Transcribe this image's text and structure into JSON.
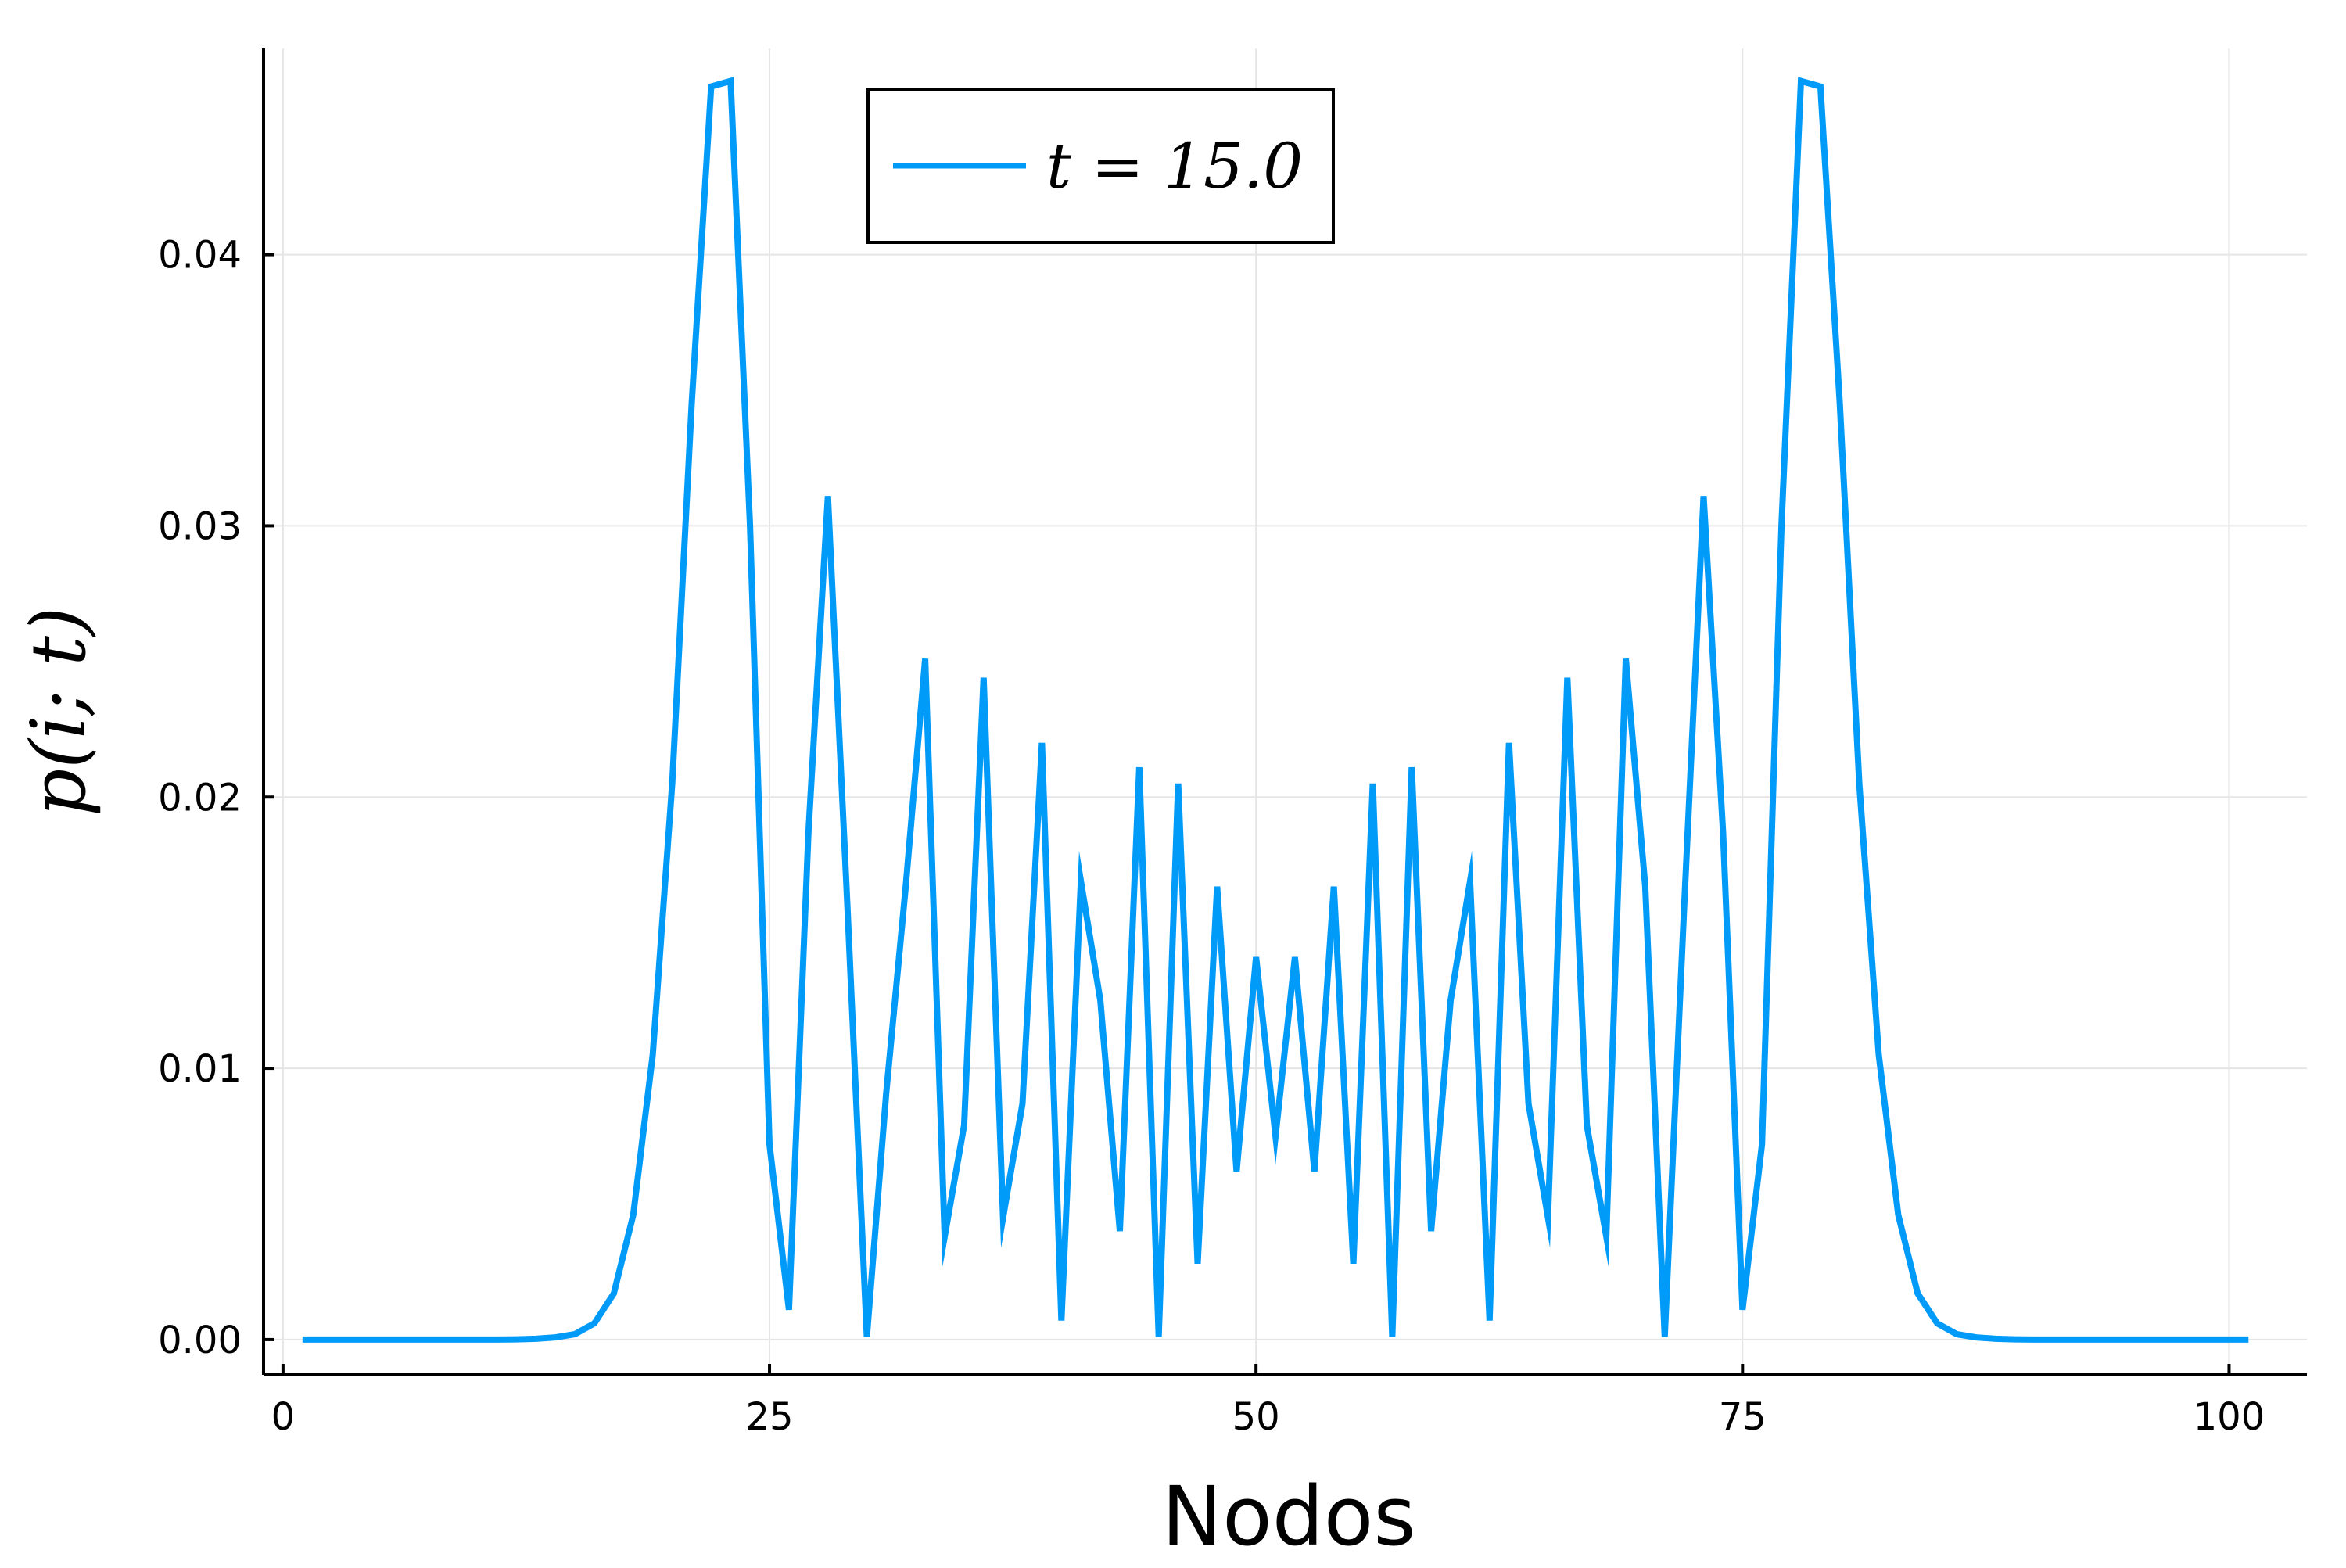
{
  "chart_data": {
    "type": "line",
    "xlabel": "Nodos",
    "ylabel": "p(i; t)",
    "xlim": [
      -1,
      104
    ],
    "ylim": [
      -0.0013,
      0.0476
    ],
    "xticks": [
      0,
      25,
      50,
      75,
      100
    ],
    "xtick_labels": [
      "0",
      "25",
      "50",
      "75",
      "100"
    ],
    "yticks": [
      0.0,
      0.01,
      0.02,
      0.03,
      0.04
    ],
    "ytick_labels": [
      "0.00",
      "0.01",
      "0.02",
      "0.03",
      "0.04"
    ],
    "grid": true,
    "legend_position": "top-center",
    "series": [
      {
        "name": "t = 15.0",
        "color": "#009af9",
        "x": [
          1,
          2,
          3,
          4,
          5,
          6,
          7,
          8,
          9,
          10,
          11,
          12,
          13,
          14,
          15,
          16,
          17,
          18,
          19,
          20,
          21,
          22,
          23,
          24,
          25,
          26,
          27,
          28,
          29,
          30,
          31,
          32,
          33,
          34,
          35,
          36,
          37,
          38,
          39,
          40,
          41,
          42,
          43,
          44,
          45,
          46,
          47,
          48,
          49,
          50,
          51,
          52,
          53,
          54,
          55,
          56,
          57,
          58,
          59,
          60,
          61,
          62,
          63,
          64,
          65,
          66,
          67,
          68,
          69,
          70,
          71,
          72,
          73,
          74,
          75,
          76,
          77,
          78,
          79,
          80,
          81,
          82,
          83,
          84,
          85,
          86,
          87,
          88,
          89,
          90,
          91,
          92,
          93,
          94,
          95,
          96,
          97,
          98,
          99,
          100,
          101
        ],
        "y": [
          0,
          0,
          0,
          0,
          0,
          0,
          0,
          0,
          0,
          0,
          0,
          1e-05,
          3e-05,
          8e-05,
          0.0002,
          0.0006,
          0.0017,
          0.0046,
          0.0105,
          0.0205,
          0.0345,
          0.0462,
          0.0464,
          0.03,
          0.0072,
          0.0011,
          0.0187,
          0.0311,
          0.016,
          0.0001,
          0.0091,
          0.0167,
          0.0251,
          0.0038,
          0.0079,
          0.0244,
          0.0045,
          0.0087,
          0.022,
          0.0007,
          0.0169,
          0.0125,
          0.004,
          0.0211,
          0.0001,
          0.0205,
          0.0028,
          0.0167,
          0.0062,
          0.0141,
          0.0075,
          0.0141,
          0.0062,
          0.0167,
          0.0028,
          0.0205,
          0.0001,
          0.0211,
          0.004,
          0.0125,
          0.0169,
          0.0007,
          0.022,
          0.0087,
          0.0045,
          0.0244,
          0.0079,
          0.0038,
          0.0251,
          0.0167,
          0.0001,
          0.016,
          0.0311,
          0.0187,
          0.0011,
          0.0072,
          0.03,
          0.0464,
          0.0462,
          0.0345,
          0.0205,
          0.0105,
          0.0046,
          0.0017,
          0.0006,
          0.0002,
          8e-05,
          3e-05,
          1e-05,
          0,
          0,
          0,
          0,
          0,
          0,
          0,
          0,
          0,
          0,
          0,
          0
        ]
      }
    ]
  }
}
